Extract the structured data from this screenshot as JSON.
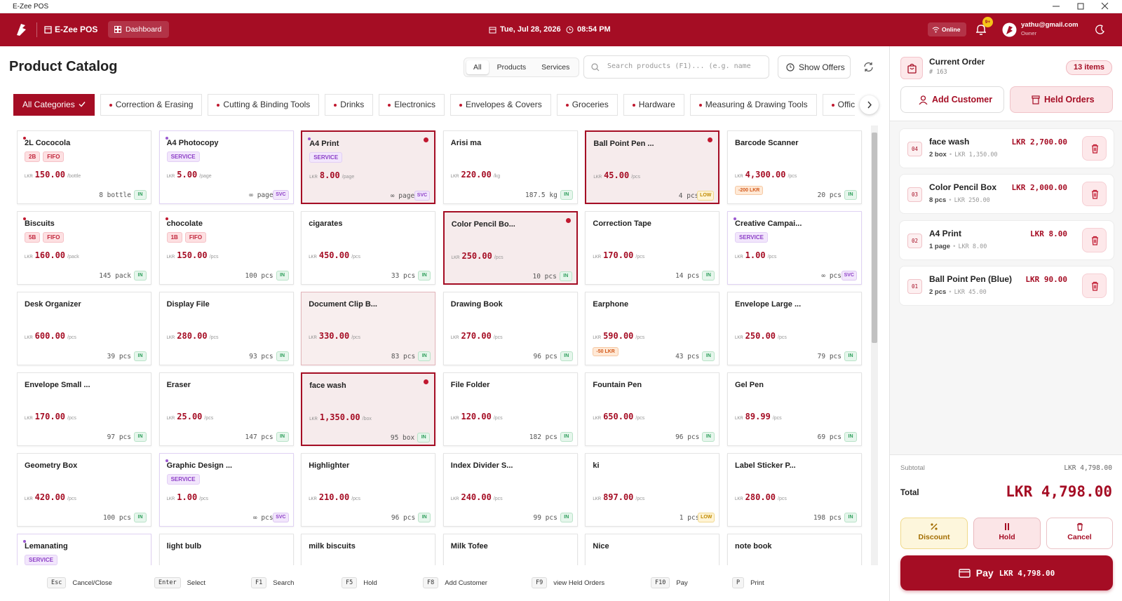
{
  "window": {
    "title": "E-Zee POS"
  },
  "header": {
    "app_name": "E-Zee POS",
    "nav": "Dashboard",
    "date": "Tue, Jul 28, 2026",
    "time": "08:54 PM",
    "status": "Online",
    "notifications": "9+",
    "user_email": "yathu@gmail.com",
    "user_role": "Owner"
  },
  "catalog": {
    "title": "Product Catalog",
    "filters": [
      "All",
      "Products",
      "Services"
    ],
    "active_filter": 0,
    "search_placeholder": "Search products (F1)... (e.g. name",
    "offers_button": "Show Offers",
    "categories": [
      "All Categories",
      "Correction & Erasing",
      "Cutting & Binding Tools",
      "Drinks",
      "Electronics",
      "Envelopes & Covers",
      "Groceries",
      "Hardware",
      "Measuring & Drawing Tools",
      "Office"
    ],
    "active_category": 0,
    "currency": "LKR",
    "products": [
      {
        "name": "2L Cococola",
        "tags": [
          "2B",
          "FIFO"
        ],
        "price": "150.00",
        "unit": "/bottle",
        "stock": "8 bottle",
        "status": "IN"
      },
      {
        "name": "A4 Photocopy",
        "tags": [
          "SERVICE"
        ],
        "price": "5.00",
        "unit": "/page",
        "stock": "∞ page",
        "status": "SVC"
      },
      {
        "name": "A4 Print",
        "tags": [
          "SERVICE"
        ],
        "price": "8.00",
        "unit": "/page",
        "stock": "∞ page",
        "status": "SVC",
        "selected": true
      },
      {
        "name": "Arisi ma",
        "price": "220.00",
        "unit": "/kg",
        "stock": "187.5 kg",
        "status": "IN"
      },
      {
        "name": "Ball Point Pen ...",
        "price": "45.00",
        "unit": "/pcs",
        "stock": "4 pcs",
        "status": "LOW",
        "selected": true
      },
      {
        "name": "Barcode Scanner",
        "price": "4,300.00",
        "unit": "/pcs",
        "offer": "-200 LKR",
        "stock": "20 pcs",
        "status": "IN"
      },
      {
        "name": "Biscuits",
        "tags": [
          "5B",
          "FIFO"
        ],
        "price": "160.00",
        "unit": "/pack",
        "stock": "145 pack",
        "status": "IN"
      },
      {
        "name": "chocolate",
        "tags": [
          "1B",
          "FIFO"
        ],
        "price": "150.00",
        "unit": "/pcs",
        "stock": "100 pcs",
        "status": "IN"
      },
      {
        "name": "cigarates",
        "price": "450.00",
        "unit": "/pcs",
        "stock": "33 pcs",
        "status": "IN"
      },
      {
        "name": "Color Pencil Bo...",
        "price": "250.00",
        "unit": "/pcs",
        "stock": "10 pcs",
        "status": "IN",
        "selected": true
      },
      {
        "name": "Correction Tape",
        "price": "170.00",
        "unit": "/pcs",
        "stock": "14 pcs",
        "status": "IN"
      },
      {
        "name": "Creative Campai...",
        "tags": [
          "SERVICE"
        ],
        "price": "1.00",
        "unit": "/pcs",
        "stock": "∞ pcs",
        "status": "SVC"
      },
      {
        "name": "Desk Organizer",
        "price": "600.00",
        "unit": "/pcs",
        "stock": "39 pcs",
        "status": "IN"
      },
      {
        "name": "Display File",
        "price": "280.00",
        "unit": "/pcs",
        "stock": "93 pcs",
        "status": "IN"
      },
      {
        "name": "Document Clip B...",
        "price": "330.00",
        "unit": "/pcs",
        "stock": "83 pcs",
        "status": "IN",
        "highlighted": true
      },
      {
        "name": "Drawing Book",
        "price": "270.00",
        "unit": "/pcs",
        "stock": "96 pcs",
        "status": "IN"
      },
      {
        "name": "Earphone",
        "price": "590.00",
        "unit": "/pcs",
        "offer": "-50 LKR",
        "stock": "43 pcs",
        "status": "IN"
      },
      {
        "name": "Envelope Large ...",
        "price": "250.00",
        "unit": "/pcs",
        "stock": "79 pcs",
        "status": "IN"
      },
      {
        "name": "Envelope Small ...",
        "price": "170.00",
        "unit": "/pcs",
        "stock": "97 pcs",
        "status": "IN"
      },
      {
        "name": "Eraser",
        "price": "25.00",
        "unit": "/pcs",
        "stock": "147 pcs",
        "status": "IN"
      },
      {
        "name": "face wash",
        "price": "1,350.00",
        "unit": "/box",
        "stock": "95 box",
        "status": "IN",
        "selected": true
      },
      {
        "name": "File Folder",
        "price": "120.00",
        "unit": "/pcs",
        "stock": "182 pcs",
        "status": "IN"
      },
      {
        "name": "Fountain Pen",
        "price": "650.00",
        "unit": "/pcs",
        "stock": "96 pcs",
        "status": "IN"
      },
      {
        "name": "Gel Pen",
        "price": "89.99",
        "unit": "/pcs",
        "stock": "69 pcs",
        "status": "IN"
      },
      {
        "name": "Geometry Box",
        "price": "420.00",
        "unit": "/pcs",
        "stock": "100 pcs",
        "status": "IN"
      },
      {
        "name": "Graphic Design ...",
        "tags": [
          "SERVICE"
        ],
        "price": "1.00",
        "unit": "/pcs",
        "stock": "∞ pcs",
        "status": "SVC"
      },
      {
        "name": "Highlighter",
        "price": "210.00",
        "unit": "/pcs",
        "stock": "96 pcs",
        "status": "IN"
      },
      {
        "name": "Index Divider S...",
        "price": "240.00",
        "unit": "/pcs",
        "stock": "99 pcs",
        "status": "IN"
      },
      {
        "name": "ki",
        "price": "897.00",
        "unit": "/pcs",
        "stock": "1 pcs",
        "status": "LOW"
      },
      {
        "name": "Label Sticker P...",
        "price": "280.00",
        "unit": "/pcs",
        "stock": "198 pcs",
        "status": "IN"
      },
      {
        "name": "Lemanating",
        "tags": [
          "SERVICE"
        ]
      },
      {
        "name": "light bulb"
      },
      {
        "name": "milk biscuits"
      },
      {
        "name": "Milk Tofee"
      },
      {
        "name": "Nice"
      },
      {
        "name": "note book"
      }
    ]
  },
  "order": {
    "title": "Current Order",
    "number": "# 163",
    "count": "13 items",
    "add_customer": "Add Customer",
    "held_orders": "Held Orders",
    "items": [
      {
        "number": "04",
        "name": "face wash",
        "amount": "LKR 2,700.00",
        "qty": "2 box",
        "unit_price": "LKR 1,350.00"
      },
      {
        "number": "03",
        "name": "Color Pencil Box",
        "amount": "LKR 2,000.00",
        "qty": "8 pcs",
        "unit_price": "LKR 250.00"
      },
      {
        "number": "02",
        "name": "A4 Print",
        "amount": "LKR 8.00",
        "qty": "1 page",
        "unit_price": "LKR 8.00"
      },
      {
        "number": "01",
        "name": "Ball Point Pen (Blue)",
        "amount": "LKR 90.00",
        "qty": "2 pcs",
        "unit_price": "LKR 45.00"
      }
    ],
    "subtotal_label": "Subtotal",
    "subtotal": "LKR 4,798.00",
    "total_label": "Total",
    "total": "LKR 4,798.00",
    "discount": "Discount",
    "hold": "Hold",
    "cancel": "Cancel",
    "pay_label": "Pay",
    "pay_amount": "LKR 4,798.00"
  },
  "shortcuts": [
    {
      "key": "Esc",
      "label": "Cancel/Close"
    },
    {
      "key": "Enter",
      "label": "Select"
    },
    {
      "key": "F1",
      "label": "Search"
    },
    {
      "key": "F5",
      "label": "Hold"
    },
    {
      "key": "F8",
      "label": "Add Customer"
    },
    {
      "key": "F9",
      "label": "view Held Orders"
    },
    {
      "key": "F10",
      "label": "Pay"
    },
    {
      "key": "P",
      "label": "Print"
    }
  ]
}
